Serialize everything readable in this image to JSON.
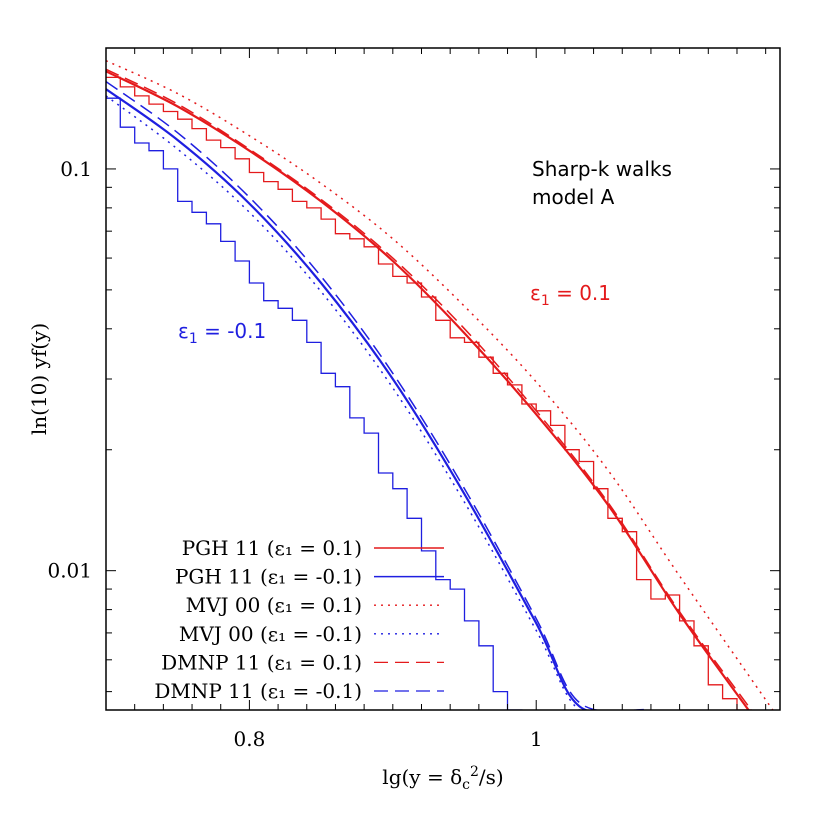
{
  "chart_data": {
    "type": "line",
    "xlabel": "lg(y = δ_c^2/s)",
    "ylabel": "ln(10) yf(y)",
    "xlim": [
      0.7,
      1.17
    ],
    "ylim": [
      0.0045,
      0.2
    ],
    "yscale": "log",
    "x_ticks": [
      {
        "value": 0.8,
        "label": "0.8"
      },
      {
        "value": 1.0,
        "label": "1"
      }
    ],
    "y_ticks": [
      {
        "value": 0.01,
        "label": "0.01"
      },
      {
        "value": 0.1,
        "label": "0.1"
      }
    ],
    "legend_position": "bottom-left",
    "annotations": {
      "title_line1": "Sharp-k walks",
      "title_line2": "model A",
      "label_red": "ε1 = 0.1",
      "label_blue": "ε1 = -0.1"
    },
    "colors": {
      "red": "#e41a1c",
      "blue": "#1f1fe0"
    },
    "series": [
      {
        "name": "PGH 11 (ε1 = 0.1)",
        "style": "solid",
        "color": "#e41a1c",
        "x": [
          0.7,
          0.75,
          0.8,
          0.85,
          0.9,
          0.95,
          1.0,
          1.05,
          1.1,
          1.15
        ],
        "y": [
          0.175,
          0.143,
          0.111,
          0.083,
          0.059,
          0.039,
          0.0245,
          0.0146,
          0.0078,
          0.0044
        ]
      },
      {
        "name": "PGH 11 (ε1 = -0.1)",
        "style": "solid",
        "color": "#1f1fe0",
        "x": [
          0.7,
          0.75,
          0.8,
          0.85,
          0.9,
          0.95,
          1.0,
          1.03,
          1.075
        ],
        "y": [
          0.158,
          0.118,
          0.082,
          0.052,
          0.03,
          0.0155,
          0.0074,
          0.0046,
          0.0045
        ]
      },
      {
        "name": "MVJ 00 (ε1 = 0.1)",
        "style": "dotted",
        "color": "#e41a1c",
        "x": [
          0.7,
          0.75,
          0.8,
          0.85,
          0.9,
          0.95,
          1.0,
          1.05,
          1.1,
          1.165
        ],
        "y": [
          0.186,
          0.154,
          0.121,
          0.092,
          0.067,
          0.0455,
          0.0295,
          0.0178,
          0.0097,
          0.0045
        ]
      },
      {
        "name": "MVJ 00 (ε1 = -0.1)",
        "style": "dotted",
        "color": "#1f1fe0",
        "x": [
          0.7,
          0.75,
          0.8,
          0.85,
          0.9,
          0.95,
          1.0,
          1.03,
          1.07
        ],
        "y": [
          0.152,
          0.112,
          0.078,
          0.0495,
          0.0285,
          0.0148,
          0.0071,
          0.0045,
          0.0045
        ]
      },
      {
        "name": "DMNP 11 (ε1 = 0.1)",
        "style": "dashed",
        "color": "#e41a1c",
        "x": [
          0.7,
          0.75,
          0.8,
          0.85,
          0.9,
          0.95,
          1.0,
          1.05,
          1.1,
          1.15
        ],
        "y": [
          0.177,
          0.145,
          0.112,
          0.084,
          0.06,
          0.04,
          0.025,
          0.0148,
          0.0079,
          0.0045
        ]
      },
      {
        "name": "DMNP 11 (ε1 = -0.1)",
        "style": "dashed",
        "color": "#1f1fe0",
        "x": [
          0.7,
          0.75,
          0.8,
          0.85,
          0.9,
          0.95,
          1.0,
          1.03,
          1.075
        ],
        "y": [
          0.165,
          0.123,
          0.085,
          0.054,
          0.031,
          0.016,
          0.0076,
          0.0047,
          0.0045
        ]
      }
    ],
    "histograms": [
      {
        "color": "#e41a1c",
        "bin_width": 0.01,
        "x_start": 0.7,
        "values": [
          0.169,
          0.16,
          0.152,
          0.145,
          0.139,
          0.133,
          0.126,
          0.118,
          0.113,
          0.106,
          0.098,
          0.093,
          0.089,
          0.083,
          0.08,
          0.075,
          0.069,
          0.067,
          0.064,
          0.058,
          0.054,
          0.052,
          0.048,
          0.042,
          0.038,
          0.037,
          0.034,
          0.031,
          0.029,
          0.026,
          0.025,
          0.023,
          0.02,
          0.0187,
          0.016,
          0.0135,
          0.0125,
          0.0095,
          0.0085,
          0.0087,
          0.0075,
          0.0065,
          0.0052,
          0.0048,
          0.0045
        ]
      },
      {
        "color": "#1f1fe0",
        "bin_width": 0.01,
        "x_start": 0.7,
        "values": [
          0.15,
          0.127,
          0.116,
          0.111,
          0.1,
          0.083,
          0.078,
          0.073,
          0.066,
          0.059,
          0.052,
          0.047,
          0.045,
          0.042,
          0.037,
          0.031,
          0.0287,
          0.024,
          0.022,
          0.0175,
          0.016,
          0.0135,
          0.0112,
          0.0095,
          0.009,
          0.0075,
          0.0065,
          0.005,
          0.0045
        ]
      }
    ]
  }
}
